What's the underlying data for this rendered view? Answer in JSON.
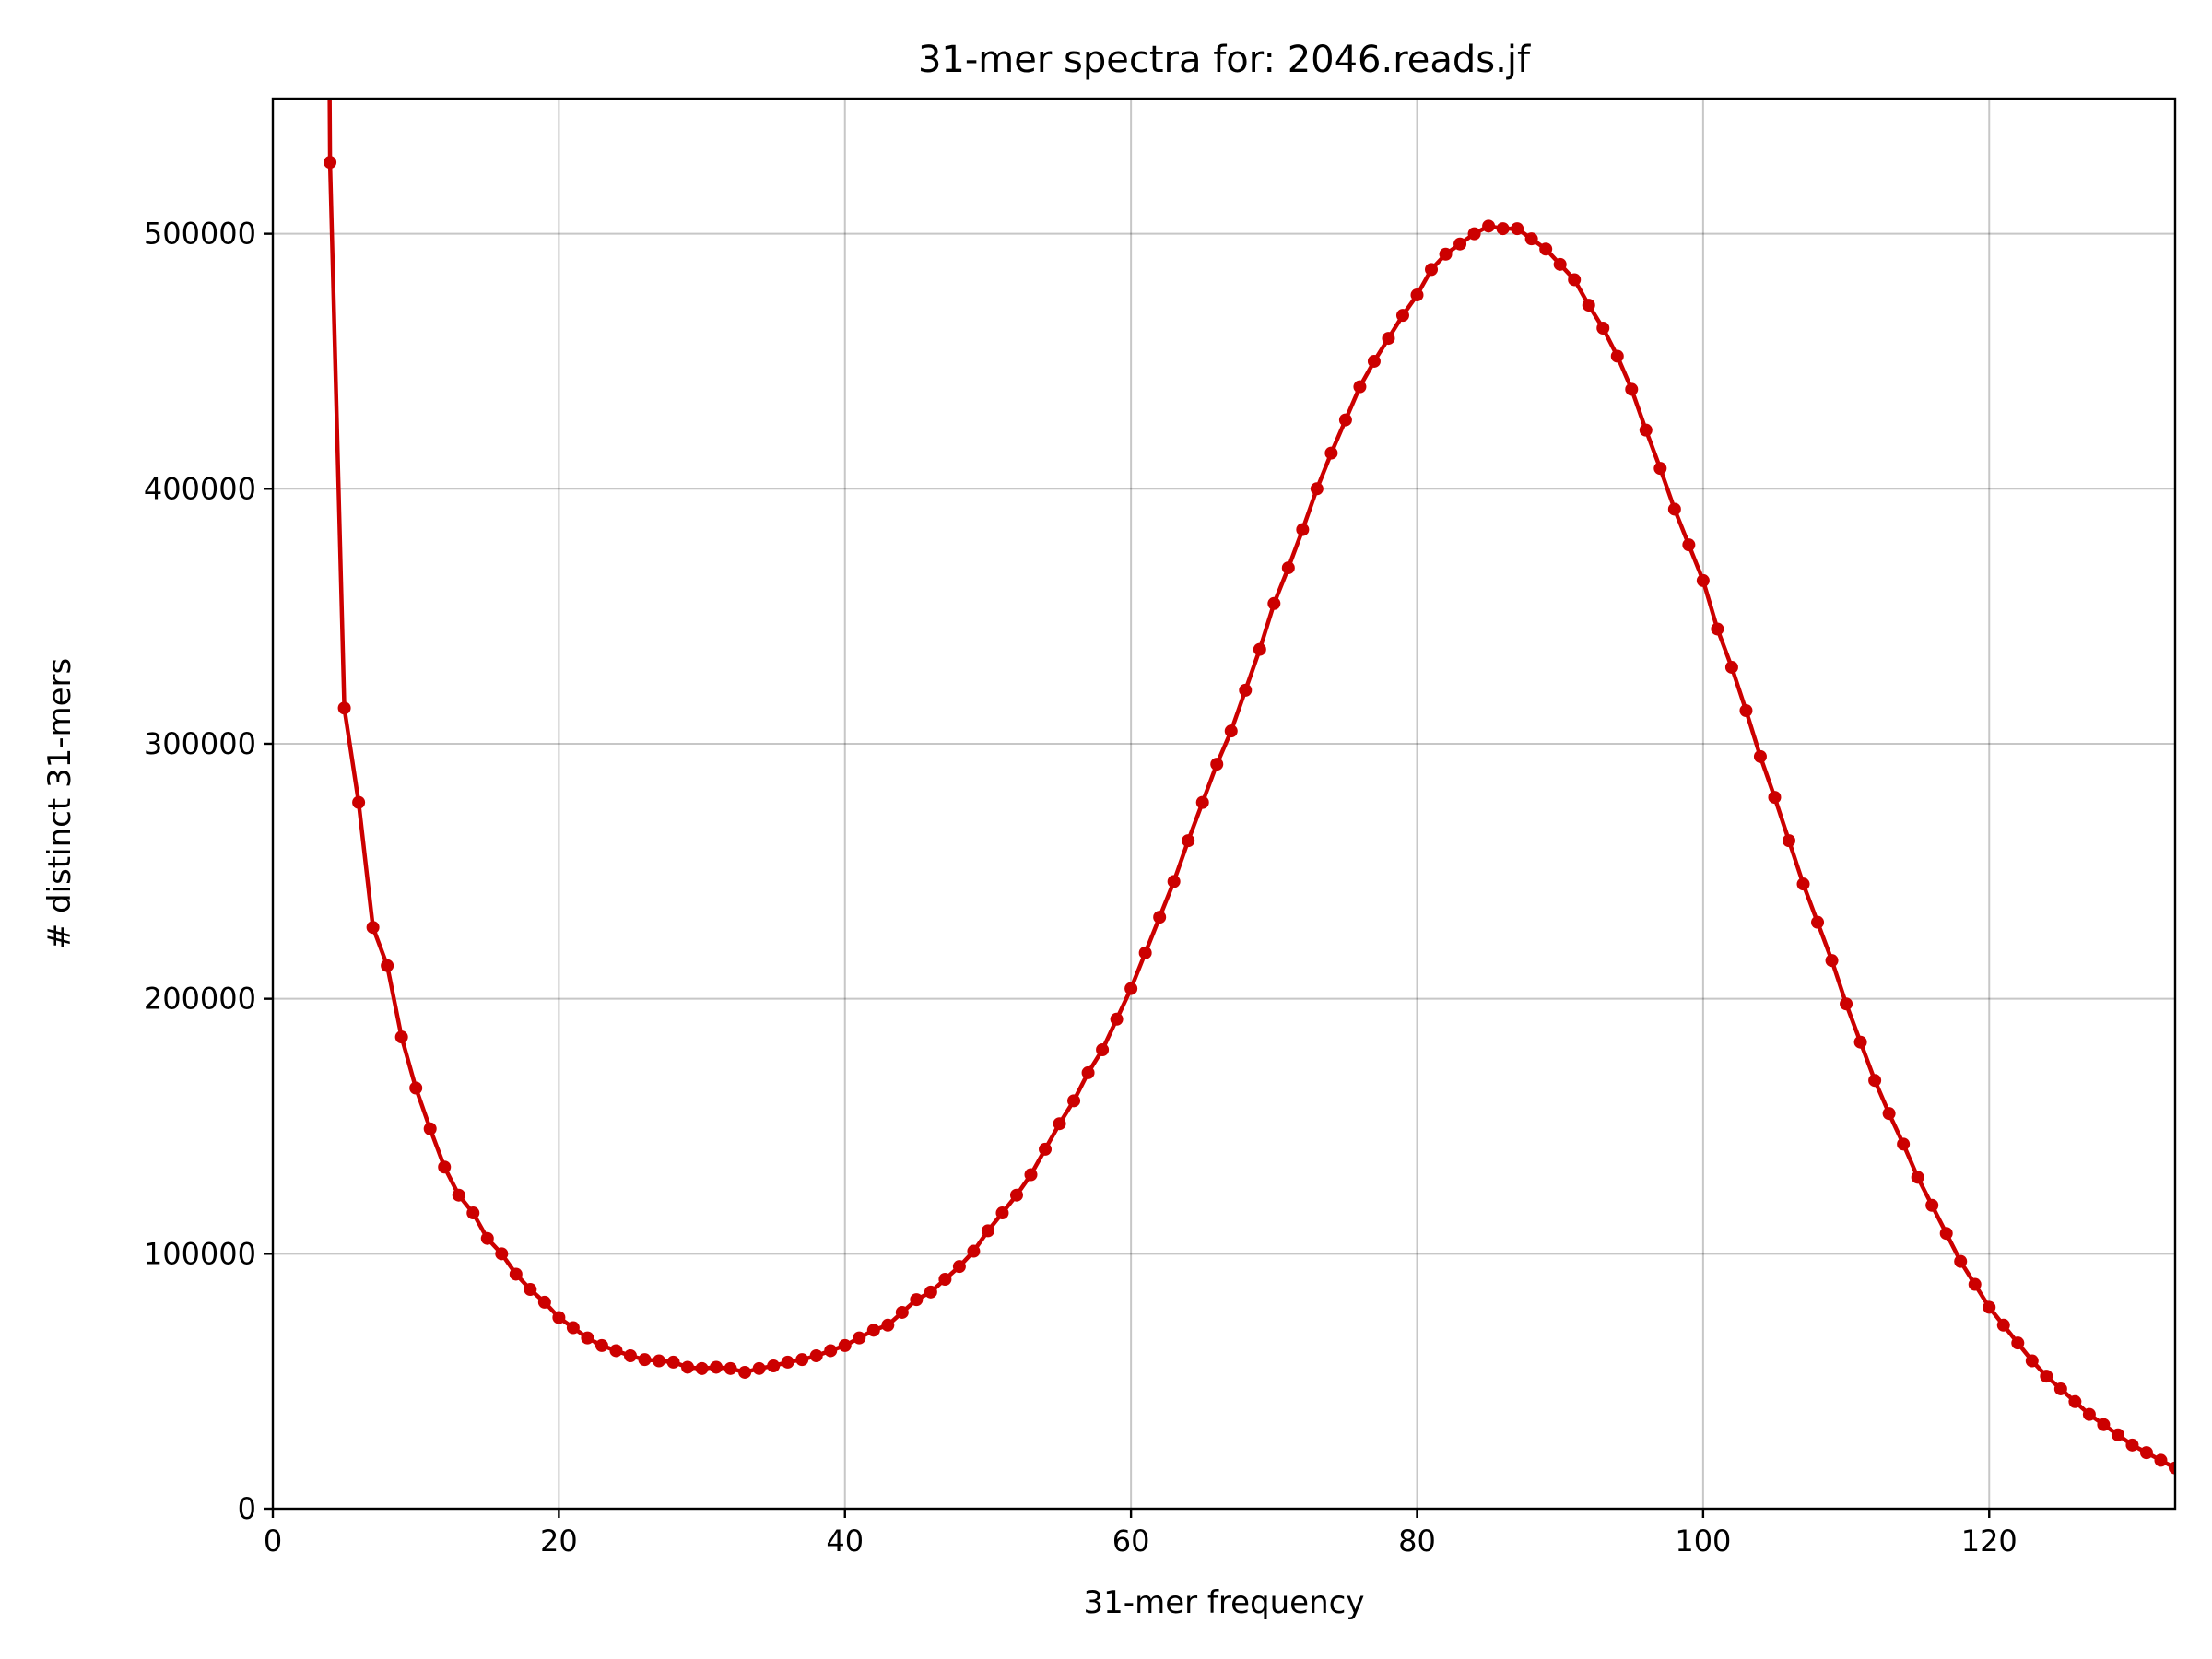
{
  "chart_data": {
    "type": "line",
    "title": "31-mer spectra for: 2046.reads.jf",
    "xlabel": "31-mer frequency",
    "ylabel": "# distinct 31-mers",
    "xlim": [
      0,
      133
    ],
    "ylim": [
      0,
      553000
    ],
    "xticks": [
      0,
      20,
      40,
      60,
      80,
      100,
      120
    ],
    "yticks": [
      0,
      100000,
      200000,
      300000,
      400000,
      500000
    ],
    "grid": true,
    "legend": "none",
    "colors": {
      "series": "#cc0000"
    },
    "series": [
      {
        "x": [
          4,
          5,
          6,
          7,
          8,
          9,
          10,
          11,
          12,
          13,
          14,
          15,
          16,
          17,
          18,
          19,
          20,
          21,
          22,
          23,
          24,
          25,
          26,
          27,
          28,
          29,
          30,
          31,
          32,
          33,
          34,
          35,
          36,
          37,
          38,
          39,
          40,
          41,
          42,
          43,
          44,
          45,
          46,
          47,
          48,
          49,
          50,
          51,
          52,
          53,
          54,
          55,
          56,
          57,
          58,
          59,
          60,
          61,
          62,
          63,
          64,
          65,
          66,
          67,
          68,
          69,
          70,
          71,
          72,
          73,
          74,
          75,
          76,
          77,
          78,
          79,
          80,
          81,
          82,
          83,
          84,
          85,
          86,
          87,
          88,
          89,
          90,
          91,
          92,
          93,
          94,
          95,
          96,
          97,
          98,
          99,
          100,
          101,
          102,
          103,
          104,
          105,
          106,
          107,
          108,
          109,
          110,
          111,
          112,
          113,
          114,
          115,
          116,
          117,
          118,
          119,
          120,
          121,
          122,
          123,
          124,
          125,
          126,
          127,
          128,
          129,
          130,
          131,
          132,
          133
        ],
        "y": [
          528000,
          314000,
          277000,
          228000,
          213000,
          185000,
          165000,
          149000,
          134000,
          123000,
          116000,
          106000,
          100000,
          92000,
          86000,
          81000,
          75000,
          71000,
          67000,
          64000,
          62000,
          60000,
          58500,
          58000,
          57500,
          55500,
          55000,
          55500,
          55000,
          53500,
          55000,
          56000,
          57500,
          58500,
          60000,
          62000,
          64000,
          67000,
          70000,
          72000,
          77000,
          82000,
          85000,
          90000,
          95000,
          101000,
          109000,
          116000,
          123000,
          131000,
          141000,
          151000,
          160000,
          171000,
          180000,
          192000,
          204000,
          218000,
          232000,
          246000,
          262000,
          277000,
          292000,
          305000,
          321000,
          337000,
          355000,
          369000,
          384000,
          400000,
          414000,
          427000,
          440000,
          450000,
          459000,
          468000,
          476000,
          486000,
          492000,
          496000,
          500000,
          503000,
          502000,
          502000,
          498000,
          494000,
          488000,
          482000,
          472000,
          463000,
          452000,
          439000,
          423000,
          408000,
          392000,
          378000,
          364000,
          345000,
          330000,
          313000,
          295000,
          279000,
          262000,
          245000,
          230000,
          215000,
          198000,
          183000,
          168000,
          155000,
          143000,
          130000,
          119000,
          108000,
          97000,
          88000,
          79000,
          72000,
          65000,
          58000,
          52000,
          47000,
          42000,
          37000,
          33000,
          29000,
          25000,
          22000,
          19000,
          16000
        ]
      }
    ]
  }
}
